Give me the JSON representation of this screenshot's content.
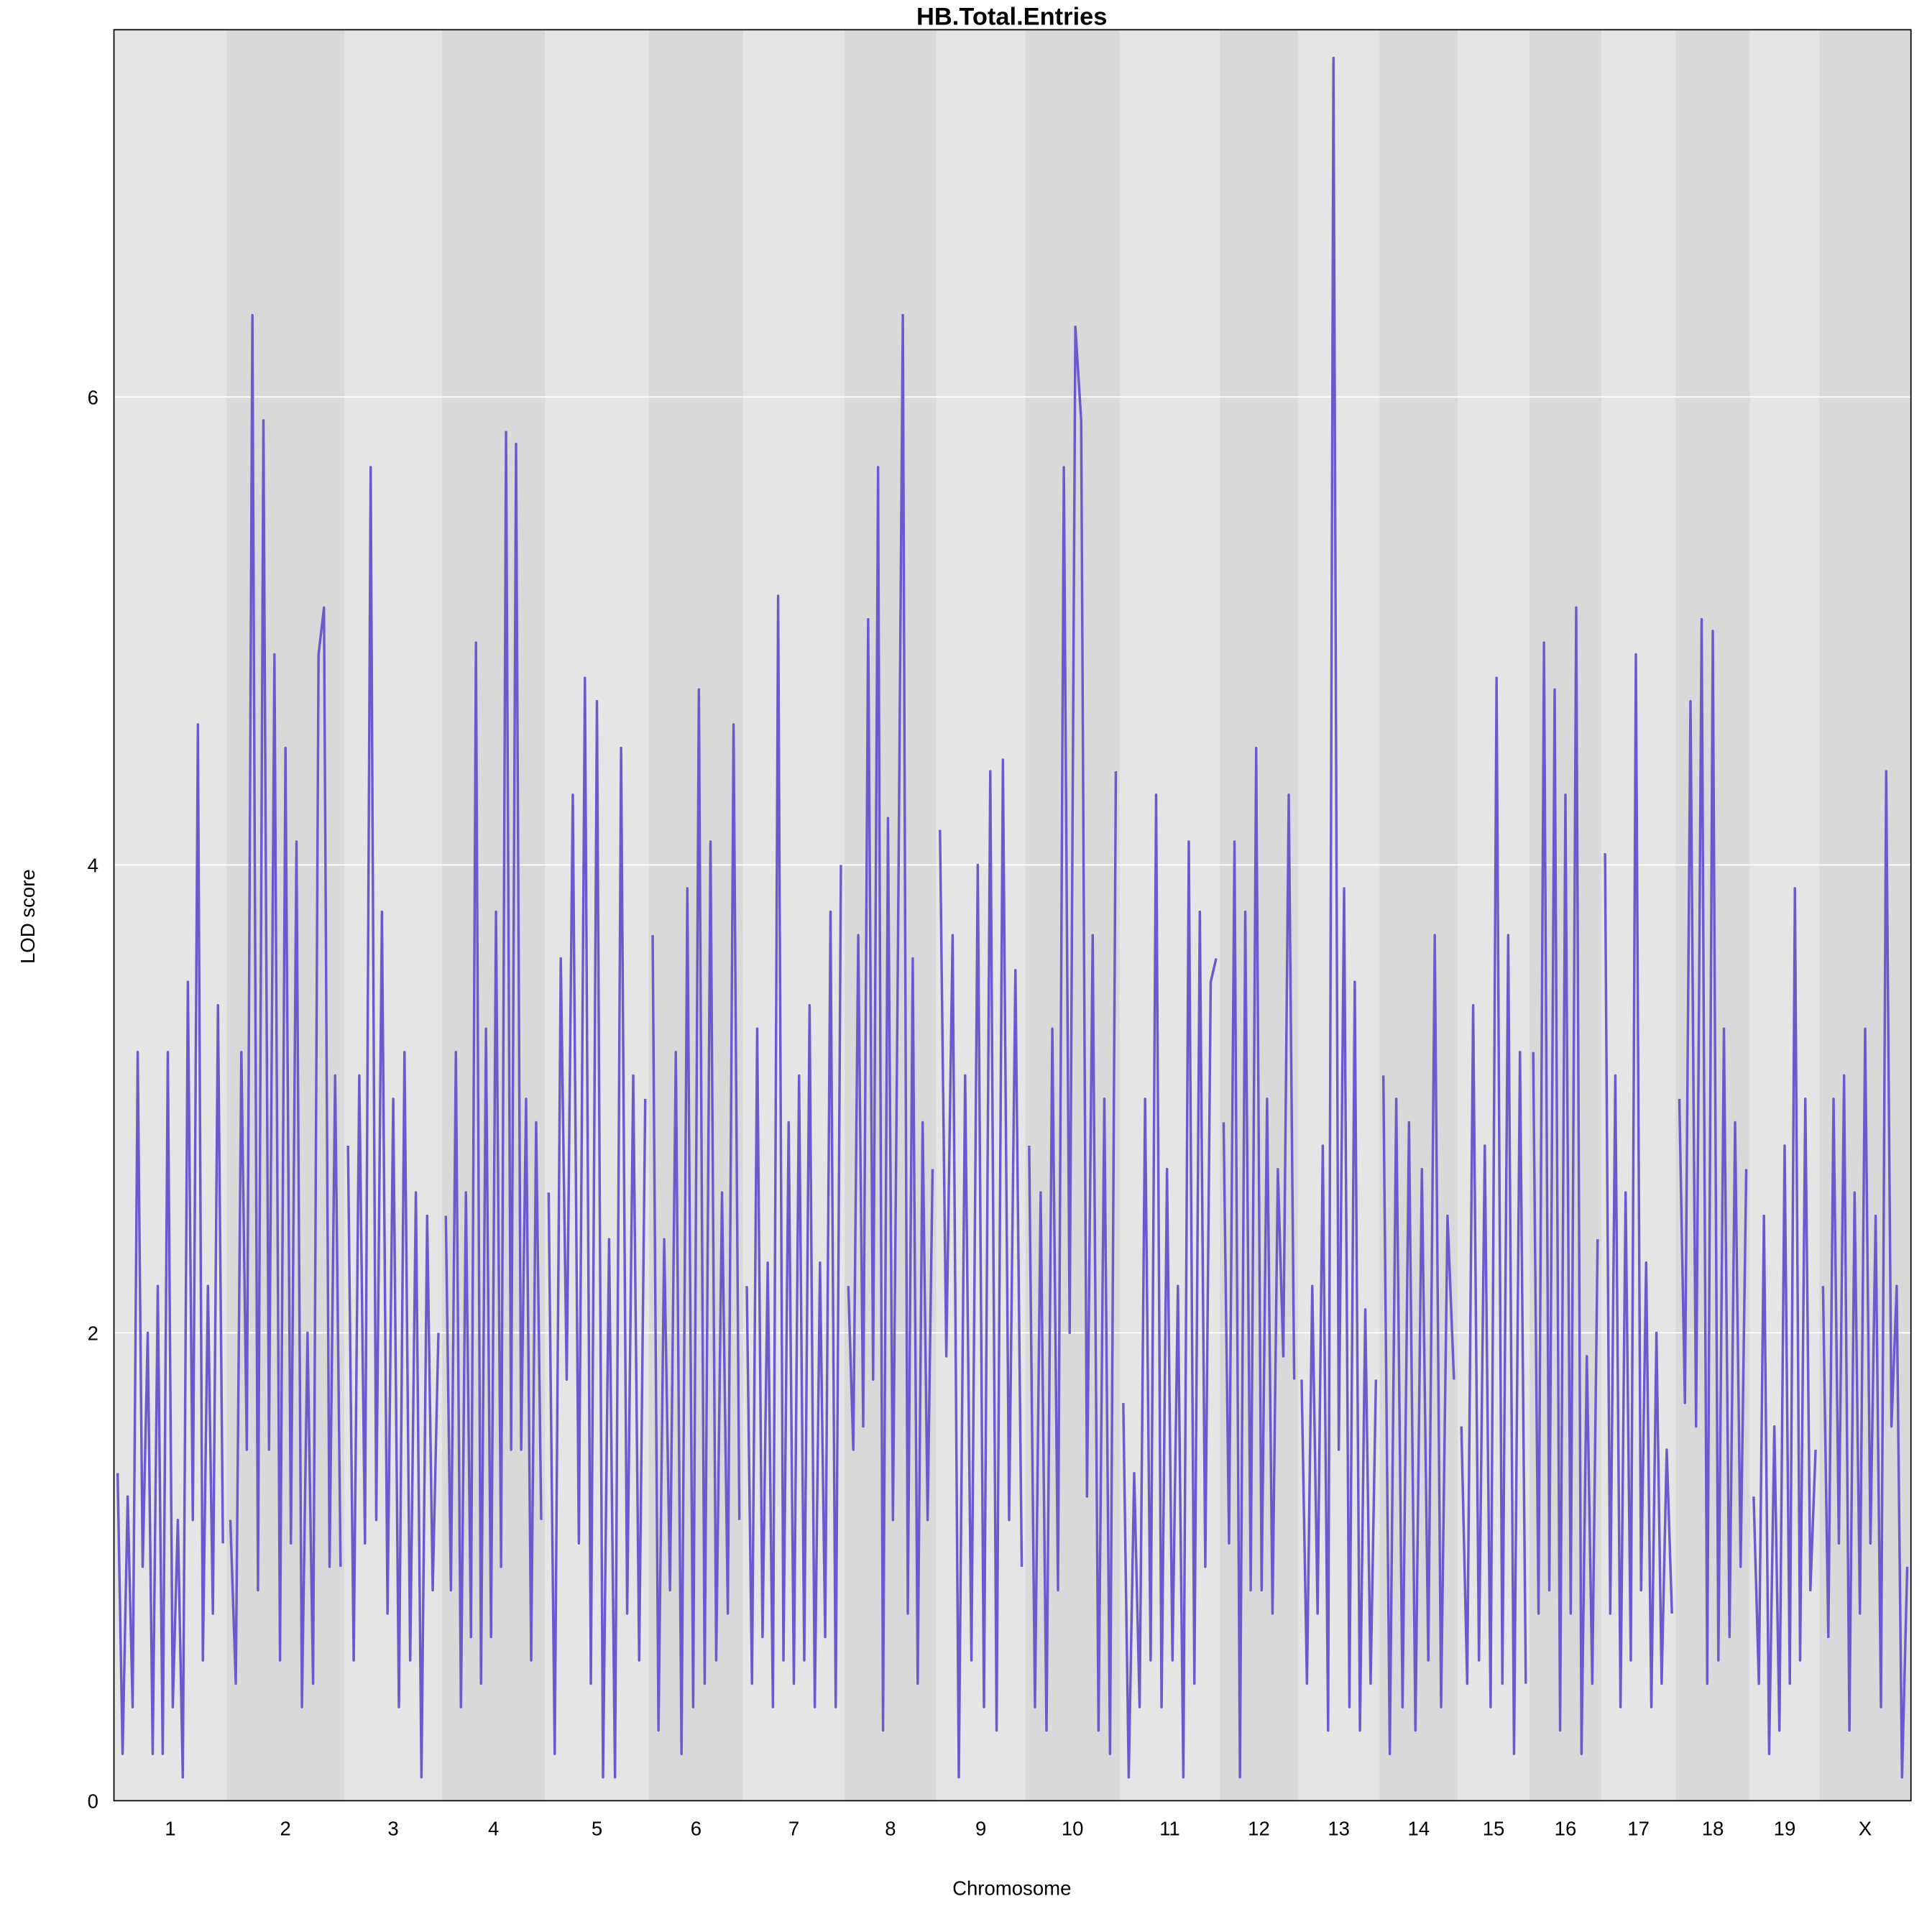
{
  "chart_data": {
    "type": "line",
    "title": "HB.Total.Entries",
    "xlabel": "Chromosome",
    "ylabel": "LOD score",
    "ylim": [
      0,
      7.57
    ],
    "yticks": [
      0,
      2,
      4,
      6
    ],
    "grid": "horizontal",
    "line_color": "#6a5acd",
    "band_colors": [
      "#e5e5e5",
      "#d9d9d9"
    ],
    "gridline_color": "#ffffff",
    "chromosomes": [
      {
        "name": "1",
        "length_cM": 91,
        "lod": [
          1.4,
          0.2,
          1.3,
          0.4,
          3.2,
          1.0,
          2.0,
          0.2,
          2.2,
          0.2,
          3.2,
          0.4,
          1.2,
          0.1,
          3.5,
          1.2,
          4.6,
          0.6,
          2.2,
          0.8,
          3.4,
          1.1
        ]
      },
      {
        "name": "2",
        "length_cM": 95,
        "lod": [
          1.2,
          0.5,
          3.2,
          1.5,
          6.35,
          0.9,
          5.9,
          1.5,
          4.9,
          0.6,
          4.5,
          1.1,
          4.1,
          0.4,
          2.0,
          0.5,
          4.9,
          5.1,
          1.0,
          3.1,
          1.0
        ]
      },
      {
        "name": "3",
        "length_cM": 79,
        "lod": [
          2.8,
          0.6,
          3.1,
          1.1,
          5.7,
          1.2,
          3.8,
          0.8,
          3.0,
          0.4,
          3.2,
          0.6,
          2.6,
          0.1,
          2.5,
          0.9,
          2.0
        ]
      },
      {
        "name": "4",
        "length_cM": 83,
        "lod": [
          2.5,
          0.9,
          3.2,
          0.4,
          2.6,
          0.7,
          4.95,
          0.5,
          3.3,
          0.7,
          3.8,
          1.0,
          5.85,
          1.5,
          5.8,
          1.5,
          3.0,
          0.6,
          2.9,
          1.2
        ]
      },
      {
        "name": "5",
        "length_cM": 84,
        "lod": [
          2.6,
          0.2,
          3.6,
          1.8,
          4.3,
          1.1,
          4.8,
          0.5,
          4.7,
          0.1,
          2.4,
          0.1,
          4.5,
          0.8,
          3.1,
          0.6,
          3.0
        ]
      },
      {
        "name": "6",
        "length_cM": 76,
        "lod": [
          3.7,
          0.3,
          2.4,
          0.9,
          3.2,
          0.2,
          3.9,
          0.4,
          4.75,
          0.5,
          4.1,
          0.6,
          2.6,
          0.8,
          4.6,
          1.2
        ]
      },
      {
        "name": "7",
        "length_cM": 82,
        "lod": [
          2.2,
          0.5,
          3.3,
          0.7,
          2.3,
          0.4,
          5.15,
          0.6,
          2.9,
          0.5,
          3.1,
          0.6,
          3.4,
          0.4,
          2.3,
          0.7,
          3.8,
          0.4,
          4.0
        ]
      },
      {
        "name": "8",
        "length_cM": 74,
        "lod": [
          2.2,
          1.5,
          3.7,
          1.6,
          5.05,
          1.8,
          5.7,
          0.3,
          4.2,
          1.2,
          3.6,
          6.35,
          0.8,
          3.6,
          0.5,
          2.9,
          1.2,
          2.7
        ]
      },
      {
        "name": "9",
        "length_cM": 72,
        "lod": [
          4.15,
          1.9,
          3.7,
          0.1,
          3.1,
          0.6,
          4.0,
          0.4,
          4.4,
          0.3,
          4.45,
          1.2,
          3.55,
          1.0
        ]
      },
      {
        "name": "10",
        "length_cM": 76,
        "lod": [
          2.8,
          0.4,
          2.6,
          0.3,
          3.3,
          0.9,
          5.7,
          2.0,
          6.3,
          5.9,
          1.3,
          3.7,
          0.3,
          3.0,
          0.2,
          4.4
        ]
      },
      {
        "name": "11",
        "length_cM": 81,
        "lod": [
          1.7,
          0.1,
          1.4,
          0.4,
          3.0,
          0.6,
          4.3,
          0.4,
          2.7,
          0.6,
          2.2,
          0.1,
          4.1,
          0.5,
          3.8,
          1.0,
          3.5,
          3.6
        ]
      },
      {
        "name": "12",
        "length_cM": 63,
        "lod": [
          2.9,
          1.1,
          4.1,
          0.1,
          3.8,
          0.9,
          4.5,
          0.9,
          3.0,
          0.8,
          2.7,
          1.9,
          4.3,
          1.8
        ]
      },
      {
        "name": "13",
        "length_cM": 66,
        "lod": [
          1.8,
          0.5,
          2.2,
          0.8,
          2.8,
          0.3,
          7.45,
          1.5,
          3.9,
          0.4,
          3.5,
          0.3,
          2.1,
          0.5,
          1.8
        ]
      },
      {
        "name": "14",
        "length_cM": 63,
        "lod": [
          3.1,
          0.2,
          3.0,
          0.4,
          2.9,
          0.3,
          2.7,
          0.6,
          3.7,
          0.4,
          2.5,
          1.8
        ]
      },
      {
        "name": "15",
        "length_cM": 58,
        "lod": [
          1.6,
          0.5,
          3.4,
          0.6,
          2.8,
          0.4,
          4.8,
          0.5,
          3.7,
          0.2,
          3.2,
          0.5
        ]
      },
      {
        "name": "16",
        "length_cM": 58,
        "lod": [
          3.2,
          0.8,
          4.95,
          0.9,
          4.75,
          0.3,
          4.3,
          0.8,
          5.1,
          0.2,
          1.9,
          0.5,
          2.4
        ]
      },
      {
        "name": "17",
        "length_cM": 60,
        "lod": [
          4.05,
          0.8,
          3.1,
          0.4,
          2.6,
          0.6,
          4.9,
          0.9,
          2.3,
          0.4,
          2.0,
          0.5,
          1.5,
          0.8
        ]
      },
      {
        "name": "18",
        "length_cM": 60,
        "lod": [
          3.0,
          1.7,
          4.7,
          1.6,
          5.05,
          0.5,
          5.0,
          0.6,
          3.3,
          0.7,
          2.9,
          1.0,
          2.7
        ]
      },
      {
        "name": "19",
        "length_cM": 56,
        "lod": [
          1.3,
          0.5,
          2.5,
          0.2,
          1.6,
          0.3,
          2.8,
          0.5,
          3.9,
          0.6,
          3.0,
          0.9,
          1.5
        ]
      },
      {
        "name": "X",
        "length_cM": 74,
        "lod": [
          2.2,
          0.7,
          3.0,
          1.1,
          3.1,
          0.3,
          2.6,
          0.8,
          3.3,
          1.1,
          2.5,
          0.4,
          4.4,
          1.6,
          2.2,
          0.1,
          1.0
        ]
      }
    ]
  }
}
